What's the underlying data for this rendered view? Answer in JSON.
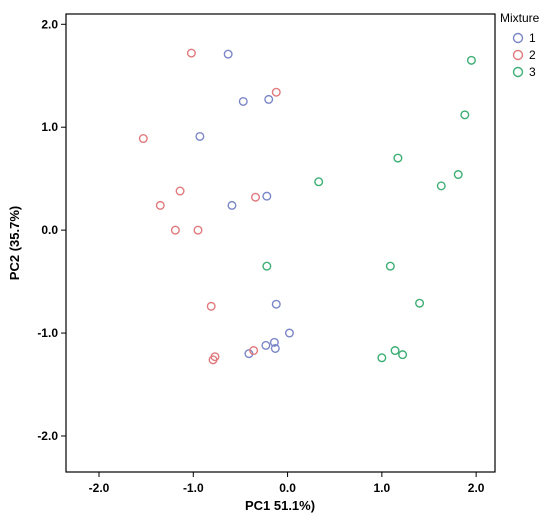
{
  "chart_data": {
    "type": "scatter",
    "xlabel": "PC1 51.1%)",
    "ylabel": "PC2 (35.7%)",
    "xlim": [
      -2.35,
      2.2
    ],
    "ylim": [
      -2.35,
      2.1
    ],
    "xticks": [
      -2.0,
      -1.0,
      0.0,
      1.0,
      2.0
    ],
    "yticks": [
      -2.0,
      -1.0,
      0.0,
      1.0,
      2.0
    ],
    "xtick_labels": [
      "-2.0",
      "-1.0",
      "0.0",
      "1.0",
      "2.0"
    ],
    "ytick_labels": [
      "-2.0",
      "-1.0",
      "0.0",
      "1.0",
      "2.0"
    ],
    "grid": false,
    "legend": {
      "title": "Mixture",
      "placement": "top-right, outside plot"
    },
    "series": [
      {
        "name": "1",
        "color": "#7b86c6",
        "points": [
          {
            "x": -0.63,
            "y": 1.71
          },
          {
            "x": -0.47,
            "y": 1.25
          },
          {
            "x": -0.2,
            "y": 1.27
          },
          {
            "x": -0.93,
            "y": 0.91
          },
          {
            "x": -0.59,
            "y": 0.24
          },
          {
            "x": -0.22,
            "y": 0.33
          },
          {
            "x": -0.12,
            "y": -0.72
          },
          {
            "x": 0.02,
            "y": -1.0
          },
          {
            "x": -0.23,
            "y": -1.12
          },
          {
            "x": -0.14,
            "y": -1.09
          },
          {
            "x": -0.13,
            "y": -1.15
          },
          {
            "x": -0.41,
            "y": -1.2
          }
        ]
      },
      {
        "name": "2",
        "color": "#e07a7e",
        "points": [
          {
            "x": -1.02,
            "y": 1.72
          },
          {
            "x": -0.12,
            "y": 1.34
          },
          {
            "x": -1.53,
            "y": 0.89
          },
          {
            "x": -1.14,
            "y": 0.38
          },
          {
            "x": -1.35,
            "y": 0.24
          },
          {
            "x": -0.34,
            "y": 0.32
          },
          {
            "x": -1.19,
            "y": 0.0
          },
          {
            "x": -0.95,
            "y": 0.0
          },
          {
            "x": -0.81,
            "y": -0.74
          },
          {
            "x": -0.36,
            "y": -1.17
          },
          {
            "x": -0.79,
            "y": -1.26
          },
          {
            "x": -0.77,
            "y": -1.23
          }
        ]
      },
      {
        "name": "3",
        "color": "#3dae74",
        "points": [
          {
            "x": 1.95,
            "y": 1.65
          },
          {
            "x": 1.88,
            "y": 1.12
          },
          {
            "x": 1.17,
            "y": 0.7
          },
          {
            "x": 1.81,
            "y": 0.54
          },
          {
            "x": 1.63,
            "y": 0.43
          },
          {
            "x": 0.33,
            "y": 0.47
          },
          {
            "x": -0.22,
            "y": -0.35
          },
          {
            "x": 1.09,
            "y": -0.35
          },
          {
            "x": 1.4,
            "y": -0.71
          },
          {
            "x": 1.14,
            "y": -1.17
          },
          {
            "x": 1.22,
            "y": -1.21
          },
          {
            "x": 1.0,
            "y": -1.24
          }
        ]
      }
    ]
  }
}
